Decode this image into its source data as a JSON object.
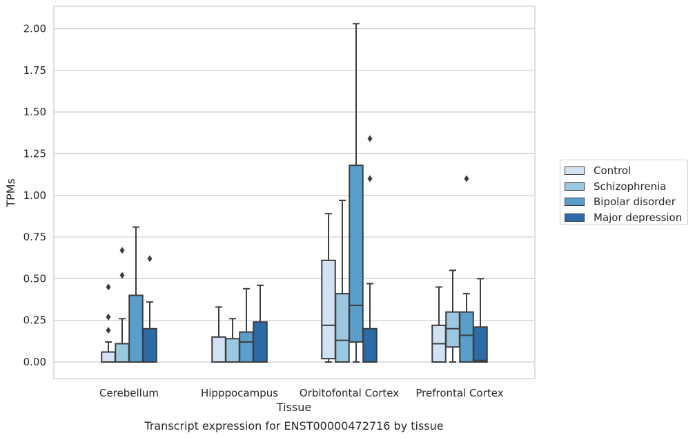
{
  "chart_data": {
    "type": "box",
    "caption": "Transcript expression for ENST00000472716 by tissue",
    "xlabel": "Tissue",
    "ylabel": "TPMs",
    "ylim": [
      -0.1,
      2.13
    ],
    "yticks": [
      "0.00",
      "0.25",
      "0.50",
      "0.75",
      "1.00",
      "1.25",
      "1.50",
      "1.75",
      "2.00"
    ],
    "grid": true,
    "legend_position": "right",
    "categories": [
      "Cerebellum",
      "Hipppocampus",
      "Orbitofontal Cortex",
      "Prefrontal Cortex"
    ],
    "series": [
      {
        "name": "Control",
        "color": "#d1e2f2",
        "boxes": [
          {
            "whisker_low": 0.0,
            "q1": 0.0,
            "median": 0.0,
            "q3": 0.06,
            "whisker_high": 0.12,
            "outliers": [
              0.19,
              0.27,
              0.45
            ]
          },
          {
            "whisker_low": 0.0,
            "q1": 0.0,
            "median": 0.0,
            "q3": 0.15,
            "whisker_high": 0.33,
            "outliers": []
          },
          {
            "whisker_low": 0.0,
            "q1": 0.02,
            "median": 0.22,
            "q3": 0.61,
            "whisker_high": 0.89,
            "outliers": []
          },
          {
            "whisker_low": 0.0,
            "q1": 0.0,
            "median": 0.11,
            "q3": 0.22,
            "whisker_high": 0.45,
            "outliers": []
          }
        ]
      },
      {
        "name": "Schizophrenia",
        "color": "#9ac8e0",
        "boxes": [
          {
            "whisker_low": 0.0,
            "q1": 0.0,
            "median": 0.0,
            "q3": 0.11,
            "whisker_high": 0.26,
            "outliers": [
              0.52,
              0.67
            ]
          },
          {
            "whisker_low": 0.0,
            "q1": 0.0,
            "median": 0.0,
            "q3": 0.14,
            "whisker_high": 0.26,
            "outliers": []
          },
          {
            "whisker_low": 0.0,
            "q1": 0.0,
            "median": 0.13,
            "q3": 0.41,
            "whisker_high": 0.97,
            "outliers": []
          },
          {
            "whisker_low": 0.0,
            "q1": 0.09,
            "median": 0.2,
            "q3": 0.3,
            "whisker_high": 0.55,
            "outliers": []
          }
        ]
      },
      {
        "name": "Bipolar disorder",
        "color": "#5a9fcc",
        "boxes": [
          {
            "whisker_low": 0.0,
            "q1": 0.0,
            "median": 0.0,
            "q3": 0.4,
            "whisker_high": 0.81,
            "outliers": []
          },
          {
            "whisker_low": 0.0,
            "q1": 0.0,
            "median": 0.12,
            "q3": 0.18,
            "whisker_high": 0.44,
            "outliers": []
          },
          {
            "whisker_low": 0.0,
            "q1": 0.12,
            "median": 0.34,
            "q3": 1.18,
            "whisker_high": 2.03,
            "outliers": []
          },
          {
            "whisker_low": 0.0,
            "q1": 0.0,
            "median": 0.16,
            "q3": 0.3,
            "whisker_high": 0.41,
            "outliers": [
              1.1
            ]
          }
        ]
      },
      {
        "name": "Major depression",
        "color": "#2b6ca8",
        "boxes": [
          {
            "whisker_low": 0.0,
            "q1": 0.0,
            "median": 0.0,
            "q3": 0.2,
            "whisker_high": 0.36,
            "outliers": [
              0.62
            ]
          },
          {
            "whisker_low": 0.0,
            "q1": 0.0,
            "median": 0.0,
            "q3": 0.24,
            "whisker_high": 0.46,
            "outliers": []
          },
          {
            "whisker_low": 0.0,
            "q1": 0.0,
            "median": 0.0,
            "q3": 0.2,
            "whisker_high": 0.47,
            "outliers": [
              1.1,
              1.34
            ]
          },
          {
            "whisker_low": 0.0,
            "q1": 0.0,
            "median": 0.01,
            "q3": 0.21,
            "whisker_high": 0.5,
            "outliers": []
          }
        ]
      }
    ]
  }
}
